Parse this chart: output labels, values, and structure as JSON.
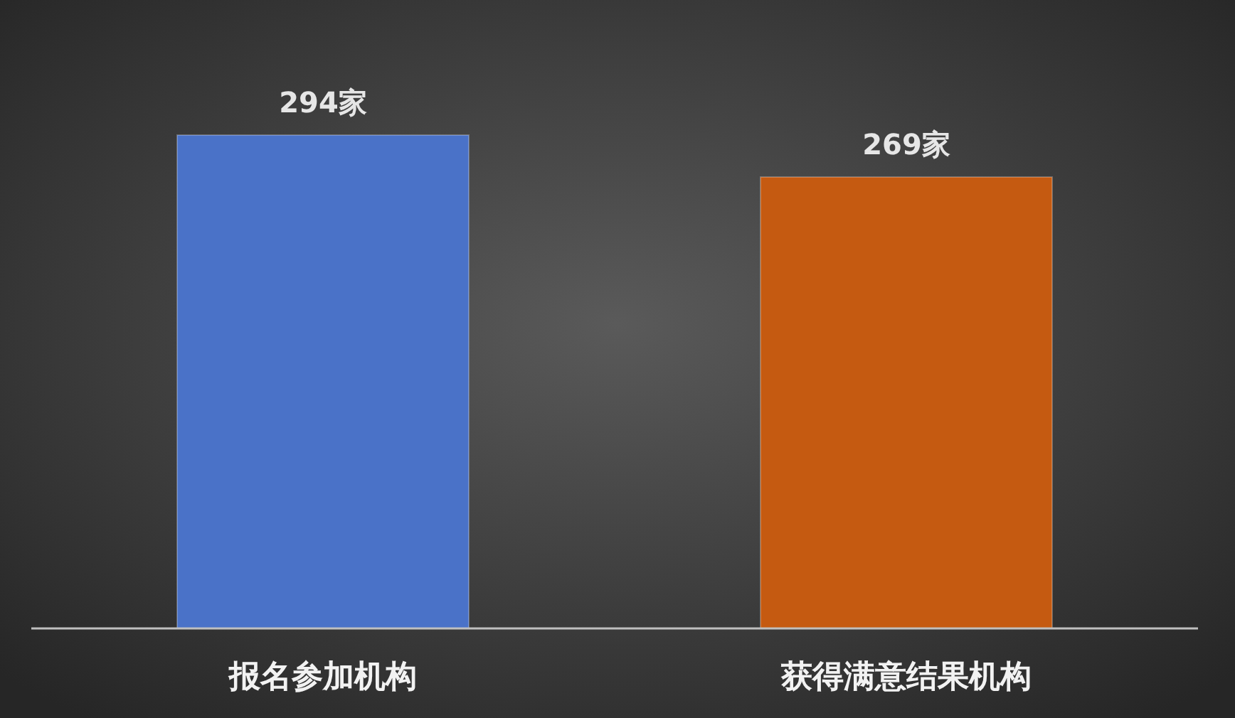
{
  "chart_data": {
    "type": "bar",
    "categories": [
      "报名参加机构",
      "获得满意结果机构"
    ],
    "values": [
      294,
      269
    ],
    "colors": [
      "#4a72c8",
      "#c55a11"
    ],
    "value_labels": [
      "294家",
      "269家"
    ]
  }
}
